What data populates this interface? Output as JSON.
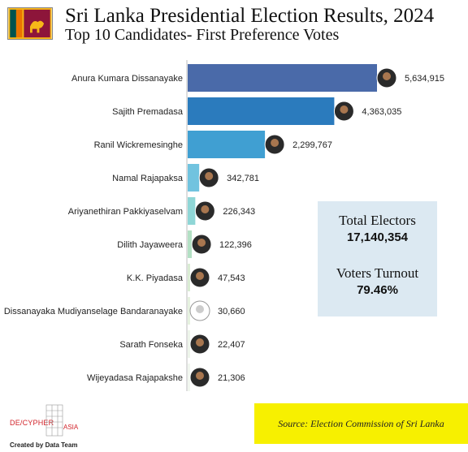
{
  "header": {
    "title": "Sri Lanka Presidential Election Results, 2024",
    "subtitle": "Top 10 Candidates- First Preference Votes",
    "flag_icon": "sri-lanka-flag-icon"
  },
  "chart_data": {
    "type": "bar",
    "orientation": "horizontal",
    "categories": [
      "Anura Kumara Dissanayake",
      "Sajith Premadasa",
      "Ranil Wickremesinghe",
      "Namal Rajapaksa",
      "Ariyanethiran Pakkiyaselvam",
      "Dilith Jayaweera",
      "K.K. Piyadasa",
      "Dissanayaka Mudiyanselage Bandaranayake",
      "Sarath Fonseka",
      "Wijeyadasa Rajapakshe"
    ],
    "values": [
      5634915,
      4363035,
      2299767,
      342781,
      226343,
      122396,
      47543,
      30660,
      22407,
      21306
    ],
    "value_labels": [
      "5,634,915",
      "4,363,035",
      "2,299,767",
      "342,781",
      "226,343",
      "122,396",
      "47,543",
      "30,660",
      "22,407",
      "21,306"
    ],
    "bar_colors": [
      "#4a6aa9",
      "#2b7bbd",
      "#409fd2",
      "#71c3df",
      "#8fd6d6",
      "#b3e0c4",
      "#d9ecd3",
      "#e6f2e0",
      "#edf5ea",
      "#f1f7ef"
    ],
    "grid": false,
    "legend": "none"
  },
  "stats": {
    "total_electors_label": "Total Electors",
    "total_electors_value": "17,140,354",
    "turnout_label": "Voters Turnout",
    "turnout_value": "79.46%"
  },
  "source": {
    "text": "Source: Election Commission of Sri Lanka"
  },
  "logo": {
    "left_text": "DE/CYPHER",
    "right_text": "ASIA",
    "credit": "Created by Data Team"
  }
}
